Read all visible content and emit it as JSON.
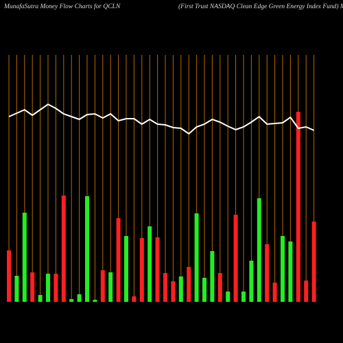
{
  "chart_data": {
    "type": "bar",
    "title": "MunafaSutra  Money Flow  Charts for QCLN",
    "subtitle": "(First Trust NASDAQ Clean  Edge   Green  Energy Index Fund) Muna",
    "categories": [
      null,
      null,
      null,
      null,
      null,
      null,
      null,
      null,
      null,
      null,
      null,
      null,
      null,
      null,
      null,
      null,
      null,
      null,
      null,
      null,
      null,
      null,
      null,
      null,
      null,
      null,
      null,
      null,
      null,
      null,
      null,
      null,
      null,
      null,
      null,
      null,
      null,
      null,
      null,
      null
    ],
    "series": [
      {
        "type": "bar",
        "values": [
          75,
          38,
          130,
          43,
          10,
          41,
          41,
          155,
          4,
          11,
          154,
          3,
          46,
          43,
          122,
          96,
          8,
          93,
          110,
          94,
          42,
          30,
          37,
          51,
          129,
          35,
          74,
          42,
          15,
          127,
          15,
          60,
          151,
          84,
          28,
          96,
          88,
          277,
          31,
          117
        ],
        "colors": [
          "#ff2020",
          "#22ee22",
          "#22ee22",
          "#ff2020",
          "#22ee22",
          "#22ee22",
          "#ff2020",
          "#ff2020",
          "#22ee22",
          "#22ee22",
          "#22ee22",
          "#22ee22",
          "#ff2020",
          "#22ee22",
          "#ff2020",
          "#22ee22",
          "#ff2020",
          "#ff2020",
          "#22ee22",
          "#ff2020",
          "#ff2020",
          "#ff2020",
          "#22ee22",
          "#ff2020",
          "#22ee22",
          "#22ee22",
          "#22ee22",
          "#ff2020",
          "#22ee22",
          "#ff2020",
          "#22ee22",
          "#22ee22",
          "#22ee22",
          "#ff2020",
          "#ff2020",
          "#22ee22",
          "#22ee22",
          "#ff2020",
          "#ff2020",
          "#ff2020"
        ]
      },
      {
        "type": "line",
        "color": "#ffffff",
        "values": [
          270,
          275,
          280,
          272,
          280,
          288,
          282,
          274,
          270,
          266,
          273,
          274,
          268,
          274,
          264,
          267,
          267,
          259,
          266,
          259,
          258,
          254,
          253,
          245,
          255,
          259,
          266,
          262,
          256,
          251,
          255,
          262,
          270,
          259,
          260,
          261,
          269,
          253,
          255,
          250
        ]
      }
    ]
  }
}
